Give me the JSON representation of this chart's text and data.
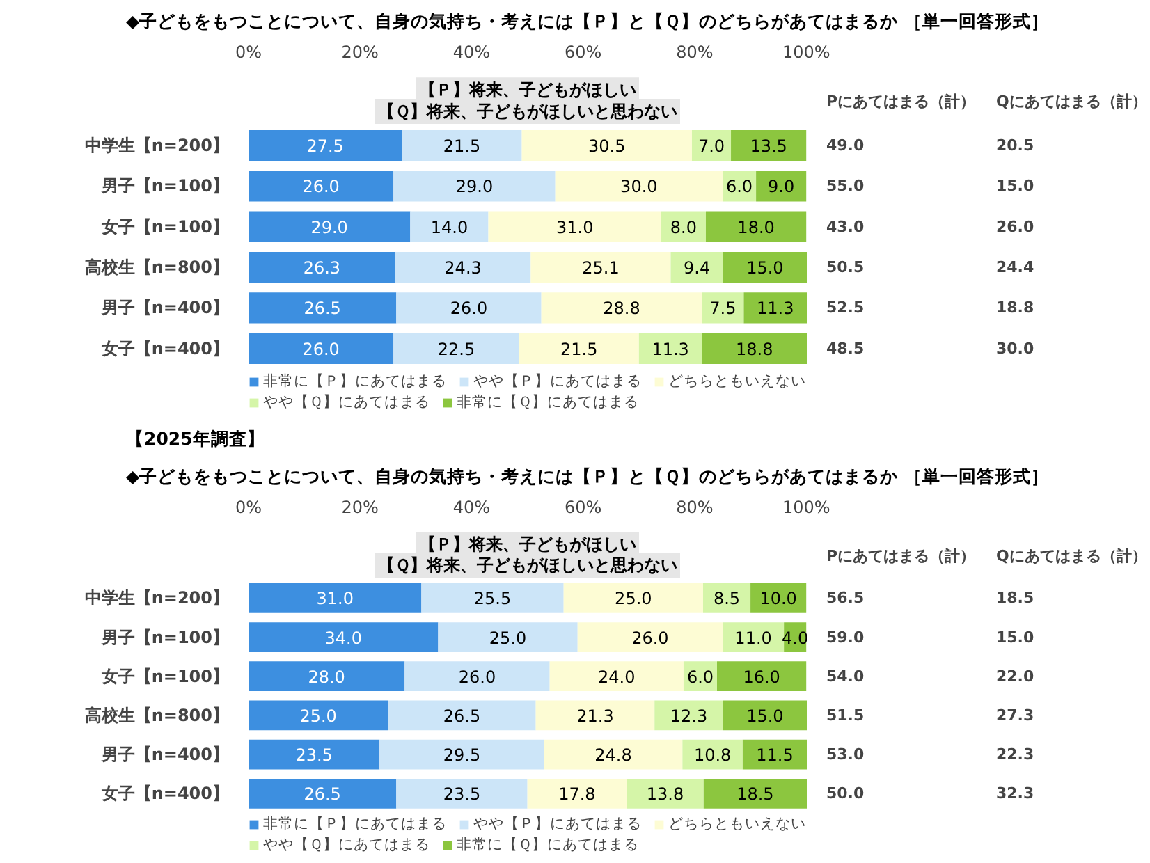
{
  "chart_data": [
    {
      "type": "bar",
      "orientation": "horizontal",
      "stacked": true,
      "legend": "bottom",
      "title": "◆子どもをもつことについて、自身の気持ち・考えには【Ｐ】と【Ｑ】のどちらがあてはまるか ［単一回答形式］",
      "annotations": [
        "【Ｐ】将来、子どもがほしい",
        "【Ｑ】将来、子どもがほしいと思わない",
        "Pにあてはまる（計）",
        "Qにあてはまる（計）"
      ],
      "categories": [
        "中学生【n=200】",
        "男子【n=100】",
        "女子【n=100】",
        "高校生【n=800】",
        "男子【n=400】",
        "女子【n=400】"
      ],
      "xlim": [
        0,
        100.1
      ],
      "xticks": [
        {
          "value": 0,
          "label": "0%"
        },
        {
          "value": 20,
          "label": "20%"
        },
        {
          "value": 40,
          "label": "40%"
        },
        {
          "value": 60,
          "label": "60%"
        },
        {
          "value": 80,
          "label": "80%"
        },
        {
          "value": 100,
          "label": "100%"
        }
      ],
      "series": [
        {
          "name": "非常に【Ｐ】にあてはまる",
          "color": "#3d8fe0",
          "values": [
            27.5,
            26.0,
            29.0,
            26.3,
            26.5,
            26.0
          ],
          "value_labels": [
            "27.5",
            "26.0",
            "29.0",
            "26.3",
            "26.5",
            "26.0"
          ]
        },
        {
          "name": "やや【Ｐ】にあてはまる",
          "color": "#cce5f8",
          "values": [
            21.5,
            29.0,
            14.0,
            24.3,
            26.0,
            22.5
          ],
          "value_labels": [
            "21.5",
            "29.0",
            "14.0",
            "24.3",
            "26.0",
            "22.5"
          ]
        },
        {
          "name": "どちらともいえない",
          "color": "#fdfcd4",
          "values": [
            30.5,
            30.0,
            31.0,
            25.1,
            28.8,
            21.5
          ],
          "value_labels": [
            "30.5",
            "30.0",
            "31.0",
            "25.1",
            "28.8",
            "21.5"
          ]
        },
        {
          "name": "やや【Ｑ】にあてはまる",
          "color": "#d5f5a8",
          "values": [
            7.0,
            6.0,
            8.0,
            9.4,
            7.5,
            11.3
          ],
          "value_labels": [
            "7.0",
            "6.0",
            "8.0",
            "9.4",
            "7.5",
            "11.3"
          ]
        },
        {
          "name": "非常に【Ｑ】にあてはまる",
          "color": "#8cc63f",
          "values": [
            13.5,
            9.0,
            18.0,
            15.0,
            11.3,
            18.8
          ],
          "value_labels": [
            "13.5",
            "9.0",
            "18.0",
            "15.0",
            "11.3",
            "18.8"
          ]
        }
      ],
      "totals": [
        [
          "49.0",
          "55.0",
          "43.0",
          "50.5",
          "52.5",
          "48.5"
        ],
        [
          "20.5",
          "15.0",
          "26.0",
          "24.4",
          "18.8",
          "30.0"
        ]
      ]
    },
    {
      "type": "bar",
      "orientation": "horizontal",
      "stacked": true,
      "legend": "bottom",
      "title": "【2025年調査】",
      "subtitle": "◆子どもをもつことについて、自身の気持ち・考えには【Ｐ】と【Ｑ】のどちらがあてはまるか ［単一回答形式］",
      "annotations": [
        "【Ｐ】将来、子どもがほしい",
        "【Ｑ】将来、子どもがほしいと思わない",
        "Pにあてはまる（計）",
        "Qにあてはまる（計）"
      ],
      "categories": [
        "中学生【n=200】",
        "男子【n=100】",
        "女子【n=100】",
        "高校生【n=800】",
        "男子【n=400】",
        "女子【n=400】"
      ],
      "xlim": [
        0,
        100.1
      ],
      "xticks": [
        {
          "value": 0,
          "label": "0%"
        },
        {
          "value": 20,
          "label": "20%"
        },
        {
          "value": 40,
          "label": "40%"
        },
        {
          "value": 60,
          "label": "60%"
        },
        {
          "value": 80,
          "label": "80%"
        },
        {
          "value": 100,
          "label": "100%"
        }
      ],
      "series": [
        {
          "name": "非常に【Ｐ】にあてはまる",
          "color": "#3d8fe0",
          "values": [
            31.0,
            34.0,
            28.0,
            25.0,
            23.5,
            26.5
          ],
          "value_labels": [
            "31.0",
            "34.0",
            "28.0",
            "25.0",
            "23.5",
            "26.5"
          ]
        },
        {
          "name": "やや【Ｐ】にあてはまる",
          "color": "#cce5f8",
          "values": [
            25.5,
            25.0,
            26.0,
            26.5,
            29.5,
            23.5
          ],
          "value_labels": [
            "25.5",
            "25.0",
            "26.0",
            "26.5",
            "29.5",
            "23.5"
          ]
        },
        {
          "name": "どちらともいえない",
          "color": "#fdfcd4",
          "values": [
            25.0,
            26.0,
            24.0,
            21.3,
            24.8,
            17.8
          ],
          "value_labels": [
            "25.0",
            "26.0",
            "24.0",
            "21.3",
            "24.8",
            "17.8"
          ]
        },
        {
          "name": "やや【Ｑ】にあてはまる",
          "color": "#d5f5a8",
          "values": [
            8.5,
            11.0,
            6.0,
            12.3,
            10.8,
            13.8
          ],
          "value_labels": [
            "8.5",
            "11.0",
            "6.0",
            "12.3",
            "10.8",
            "13.8"
          ]
        },
        {
          "name": "非常に【Ｑ】にあてはまる",
          "color": "#8cc63f",
          "values": [
            10.0,
            4.0,
            16.0,
            15.0,
            11.5,
            18.5
          ],
          "value_labels": [
            "10.0",
            "4.0",
            "16.0",
            "15.0",
            "11.5",
            "18.5"
          ]
        }
      ],
      "totals": [
        [
          "56.5",
          "59.0",
          "54.0",
          "51.5",
          "53.0",
          "50.0"
        ],
        [
          "18.5",
          "15.0",
          "22.0",
          "27.3",
          "22.3",
          "32.3"
        ]
      ]
    }
  ]
}
